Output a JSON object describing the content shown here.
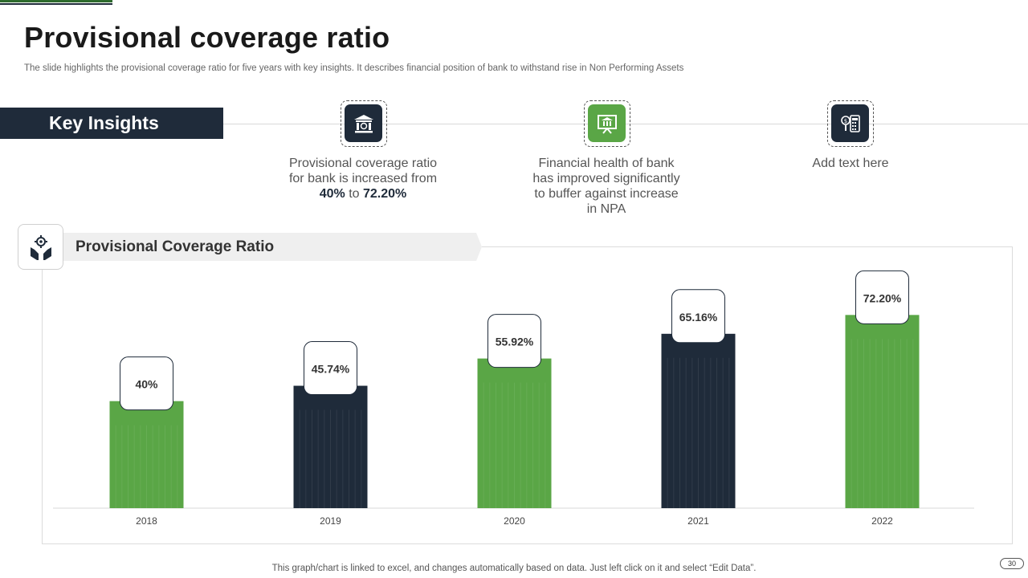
{
  "slide": {
    "title": "Provisional coverage ratio",
    "subtitle": "The slide highlights the provisional coverage ratio for five years with key insights. It describes financial position of bank to withstand rise in Non Performing Assets",
    "page_number": "30",
    "footer_note": "This graph/chart is linked to excel,  and changes automatically based on data. Just left click on it and select “Edit Data”."
  },
  "key_insights": {
    "heading": "Key Insights",
    "items": [
      {
        "icon": "bank-icon",
        "line1": "Provisional coverage ratio",
        "line2": "for bank is increased from",
        "from": "40%",
        "connector": " to ",
        "to": "72.20%"
      },
      {
        "icon": "bank-presentation-icon",
        "line1": "Financial health  of bank",
        "line2": "has improved significantly",
        "line3": "to buffer against increase",
        "line4": "in NPA"
      },
      {
        "icon": "calculator-money-icon",
        "text": "Add text here"
      }
    ]
  },
  "chart_section": {
    "heading": "Provisional Coverage Ratio",
    "icon": "hands-gear-icon"
  },
  "colors": {
    "green": "#5aa646",
    "navy": "#1f2b3a",
    "axis": "#d9d9d9"
  },
  "chart_data": {
    "type": "bar",
    "title": "Provisional Coverage Ratio",
    "categories": [
      "2018",
      "2019",
      "2020",
      "2021",
      "2022"
    ],
    "values": [
      40,
      45.74,
      55.92,
      65.16,
      72.2
    ],
    "labels": [
      "40%",
      "45.74%",
      "55.92%",
      "65.16%",
      "72.20%"
    ],
    "bar_colors": [
      "#5aa646",
      "#1f2b3a",
      "#5aa646",
      "#1f2b3a",
      "#5aa646"
    ],
    "xlabel": "",
    "ylabel": "",
    "ylim": [
      0,
      90
    ],
    "grid": false,
    "legend": "none"
  }
}
